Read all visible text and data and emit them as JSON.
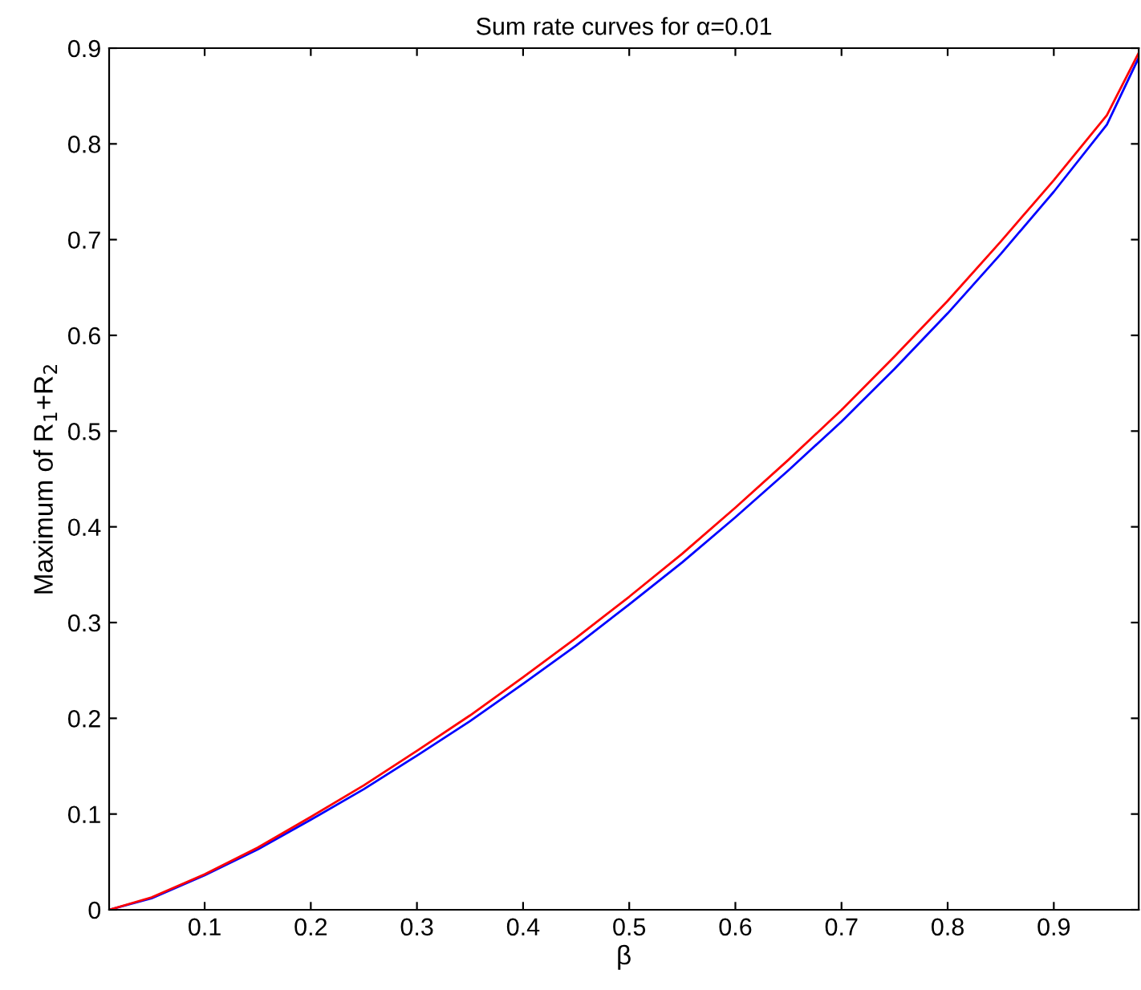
{
  "chart_data": {
    "type": "line",
    "title": "Sum rate curves for α=0.01",
    "xlabel": "β",
    "ylabel": "Maximum of R$_{1}$+R$_{2}$",
    "x": [
      0.01,
      0.05,
      0.1,
      0.15,
      0.2,
      0.25,
      0.3,
      0.35,
      0.4,
      0.45,
      0.5,
      0.55,
      0.6,
      0.65,
      0.7,
      0.75,
      0.8,
      0.85,
      0.9,
      0.95,
      0.98
    ],
    "series": [
      {
        "color": "#0000ff",
        "values": [
          0,
          0.012,
          0.036,
          0.063,
          0.094,
          0.126,
          0.161,
          0.197,
          0.236,
          0.276,
          0.319,
          0.363,
          0.41,
          0.459,
          0.51,
          0.565,
          0.623,
          0.685,
          0.75,
          0.82,
          0.89
        ]
      },
      {
        "color": "#ff0000",
        "values": [
          0,
          0.013,
          0.037,
          0.065,
          0.097,
          0.13,
          0.166,
          0.203,
          0.243,
          0.284,
          0.327,
          0.372,
          0.42,
          0.47,
          0.522,
          0.578,
          0.636,
          0.698,
          0.762,
          0.83,
          0.895
        ]
      }
    ],
    "xlim": [
      0.01,
      0.98
    ],
    "ylim": [
      0,
      0.9
    ],
    "xticks": [
      0.1,
      0.2,
      0.3,
      0.4,
      0.5,
      0.6,
      0.7,
      0.8,
      0.9
    ],
    "yticks": [
      0,
      0.1,
      0.2,
      0.3,
      0.4,
      0.5,
      0.6,
      0.7,
      0.8,
      0.9
    ],
    "grid": false,
    "legend": false
  }
}
